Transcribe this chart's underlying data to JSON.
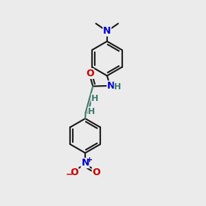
{
  "bg_color": "#ebebeb",
  "bond_color": "#1a1a1a",
  "bond_color_teal": "#3d7a6a",
  "n_color": "#0000cc",
  "o_color": "#cc0000",
  "h_color": "#3d7a6a",
  "bond_width": 1.6,
  "font_size_atom": 9,
  "font_size_small": 8,
  "fig_size": [
    3.0,
    3.0
  ],
  "dpi": 100,
  "xlim": [
    0,
    10
  ],
  "ylim": [
    0,
    10
  ]
}
